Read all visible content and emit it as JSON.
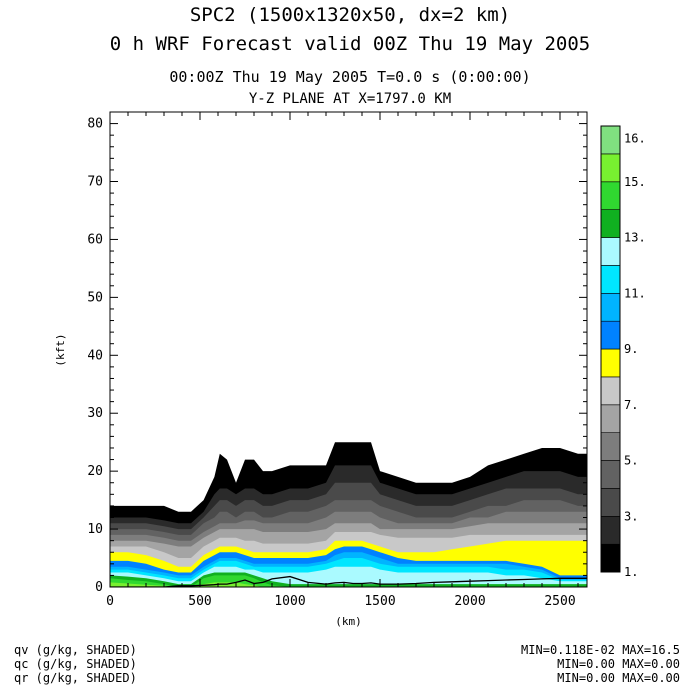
{
  "header": {
    "title_line1": "SPC2 (1500x1320x50, dx=2 km)",
    "title_line2": "0 h WRF Forecast valid 00Z Thu 19 May 2005",
    "time_line": "00:00Z Thu 19 May 2005      T=0.0 s (0:00:00)",
    "plane_line": "Y-Z PLANE AT X=1797.0 KM"
  },
  "footer": {
    "fields": [
      "qv (g/kg, SHADED)",
      "qc (g/kg, SHADED)",
      "qr (g/kg, SHADED)"
    ],
    "stats": [
      "MIN=0.118E-02 MAX=16.5",
      "MIN=0.00 MAX=0.00",
      "MIN=0.00 MAX=0.00"
    ]
  },
  "colors": {
    "levels": [
      "#000000",
      "#2a2a2a",
      "#4a4a4a",
      "#626262",
      "#7d7d7d",
      "#a4a4a4",
      "#c8c8c8",
      "#ffff00",
      "#0082ff",
      "#00b4ff",
      "#00e6ff",
      "#aafaff",
      "#10b020",
      "#30d830",
      "#78f030",
      "#80e080"
    ]
  },
  "chart_data": {
    "type": "heatmap",
    "xlabel": "(km)",
    "ylabel": "(kft)",
    "xlim": [
      0,
      2650
    ],
    "ylim": [
      0,
      82
    ],
    "x_ticks": [
      0,
      500,
      1000,
      1500,
      2000,
      2500
    ],
    "x_tick_labels": [
      "0",
      "500",
      "1000",
      "1500",
      "2000",
      "2500"
    ],
    "y_ticks": [
      0,
      10,
      20,
      30,
      40,
      50,
      60,
      70,
      80
    ],
    "y_tick_labels": [
      "0",
      "10",
      "20",
      "30",
      "40",
      "50",
      "60",
      "70",
      "80"
    ],
    "colorbar": {
      "levels": [
        1,
        2,
        3,
        4,
        5,
        6,
        7,
        8,
        9,
        10,
        11,
        12,
        13,
        14,
        15,
        16
      ],
      "labels": [
        {
          "value": 1,
          "text": "1."
        },
        {
          "value": 3,
          "text": "3."
        },
        {
          "value": 5,
          "text": "5."
        },
        {
          "value": 7,
          "text": "7."
        },
        {
          "value": 9,
          "text": "9."
        },
        {
          "value": 11,
          "text": "11."
        },
        {
          "value": 13,
          "text": "13."
        },
        {
          "value": 15,
          "text": "15."
        },
        {
          "value": 16,
          "text": "16."
        }
      ]
    },
    "x": [
      0,
      100,
      200,
      300,
      380,
      450,
      520,
      580,
      610,
      650,
      700,
      750,
      800,
      850,
      900,
      1000,
      1100,
      1200,
      1250,
      1300,
      1350,
      1400,
      1450,
      1500,
      1600,
      1700,
      1800,
      1900,
      2000,
      2100,
      2200,
      2300,
      2400,
      2500,
      2600,
      2650
    ],
    "qv_tops": [
      [
        14,
        14,
        14,
        14,
        13,
        13,
        15,
        19,
        23,
        22,
        18,
        22,
        22,
        20,
        20,
        21,
        21,
        21,
        25,
        25,
        25,
        25,
        25,
        20,
        19,
        18,
        18,
        18,
        19,
        21,
        22,
        23,
        24,
        24,
        23,
        23
      ],
      [
        12,
        12,
        12,
        11.5,
        11,
        11,
        13,
        16,
        17,
        17,
        16,
        17,
        17,
        16,
        16,
        17,
        17,
        18,
        21,
        21,
        21,
        21,
        21,
        18,
        17,
        16,
        16,
        16,
        17,
        18,
        19,
        20,
        20,
        20,
        19,
        19
      ],
      [
        11,
        11,
        11,
        10.5,
        10,
        10,
        12,
        14,
        15,
        15,
        14,
        15,
        15,
        14,
        14,
        15,
        15,
        16,
        18,
        18,
        18,
        18,
        18,
        16,
        15,
        14,
        14,
        14,
        15,
        16,
        17,
        17,
        17,
        17,
        16,
        16
      ],
      [
        10,
        10,
        10,
        9.5,
        9,
        9,
        11,
        12,
        13,
        13,
        12,
        13,
        13,
        12,
        12,
        13,
        13,
        14,
        15,
        15,
        15,
        15,
        15,
        14,
        13,
        12,
        12,
        12,
        13,
        14,
        14,
        15,
        15,
        15,
        14,
        14
      ],
      [
        9,
        9,
        9,
        8.5,
        8,
        8,
        9.5,
        10.5,
        11,
        11,
        11,
        11.5,
        11.5,
        11,
        11,
        11,
        11,
        12,
        13,
        13,
        13,
        13,
        13,
        12,
        11,
        11,
        11,
        11,
        12,
        12,
        13,
        13,
        13,
        13,
        13,
        13
      ],
      [
        8,
        8,
        8,
        7.5,
        7,
        7,
        8.5,
        9.5,
        10,
        10,
        10,
        10,
        10,
        9.5,
        9.5,
        9.5,
        9.5,
        10,
        11,
        11,
        11,
        11,
        11,
        10,
        10,
        10,
        10,
        10,
        10.5,
        11,
        11,
        11,
        11,
        11,
        11,
        11
      ],
      [
        7,
        7,
        7,
        6,
        5,
        5,
        7,
        8,
        8.5,
        8.5,
        8.5,
        8,
        8,
        7.5,
        7.5,
        7.5,
        7.5,
        8,
        9.5,
        9.5,
        9.5,
        9.5,
        9.5,
        9,
        8.5,
        8.5,
        8.5,
        8.5,
        9,
        9,
        9,
        9,
        9,
        9,
        9,
        9
      ],
      [
        6,
        6,
        5.5,
        4.5,
        3.5,
        3.5,
        5.5,
        6.5,
        7,
        7,
        7,
        6.5,
        6,
        6,
        6,
        6,
        6,
        6.5,
        8,
        8,
        8,
        8,
        7.5,
        7,
        6,
        6,
        6,
        6.5,
        7,
        7.5,
        8,
        8,
        8,
        8,
        8,
        8
      ],
      [
        4.5,
        4.5,
        4,
        3,
        2.5,
        2.5,
        4.5,
        5.5,
        6,
        6,
        6,
        5.5,
        5,
        5,
        5,
        5,
        5,
        5.5,
        6.5,
        7,
        7,
        7,
        6.5,
        6,
        5,
        4.5,
        4.5,
        4.5,
        4.5,
        4.5,
        4.5,
        4,
        3.5,
        2,
        2,
        2
      ],
      [
        3.5,
        3.5,
        3,
        2.5,
        2,
        2,
        3.5,
        4.5,
        5,
        5,
        5,
        4.5,
        4,
        4,
        4,
        4,
        4,
        4.5,
        5.5,
        6,
        6,
        6,
        5.5,
        5,
        4,
        4,
        4,
        4,
        4,
        4,
        4,
        3.5,
        3,
        1.5,
        1.5,
        1.5
      ],
      [
        3,
        3,
        2.5,
        2,
        1.5,
        1.5,
        3,
        4,
        4.5,
        4.5,
        4.5,
        4,
        3.5,
        3.5,
        3.5,
        3.5,
        3.5,
        4,
        4.5,
        5,
        5,
        5,
        4.5,
        4,
        3.5,
        3.5,
        3.5,
        3.5,
        3.5,
        3.5,
        3,
        3,
        2.5,
        1.2,
        1.2,
        1.2
      ],
      [
        2.5,
        2.5,
        2,
        1.5,
        1,
        1,
        2.5,
        3.5,
        3.5,
        3.5,
        3.5,
        3,
        3,
        2.5,
        2.5,
        2.5,
        2.5,
        3,
        3.5,
        3.5,
        3.5,
        3.5,
        3.5,
        3,
        2.5,
        2.5,
        2.5,
        2.5,
        2.5,
        2.5,
        2,
        2,
        1.5,
        1,
        1,
        1
      ],
      [
        2,
        1.8,
        1.5,
        1,
        0.5,
        0.5,
        2,
        2.5,
        2.5,
        2.5,
        2.5,
        2.5,
        2,
        1.5,
        1,
        0.5,
        0.5,
        0.5,
        0.5,
        0.5,
        0.5,
        0.5,
        0.5,
        0.5,
        0.5,
        0.5,
        0.5,
        0.5,
        0.5,
        0.5,
        0.5,
        0.5,
        0.5,
        0.5,
        0.5,
        0.5
      ],
      [
        1.5,
        1.2,
        1,
        0.5,
        0,
        0,
        1.5,
        2,
        2,
        2,
        2,
        2,
        1.5,
        0.8,
        0.3,
        0,
        0,
        0,
        0,
        0,
        0,
        0,
        0,
        0,
        0,
        0,
        0,
        0,
        0,
        0,
        0,
        0,
        0,
        0,
        0,
        0
      ],
      [
        0.8,
        0.6,
        0.4,
        0.2,
        0,
        0,
        0.5,
        0.8,
        0.8,
        0.8,
        0.8,
        0.5,
        0.3,
        0,
        0,
        0,
        0,
        0,
        0,
        0,
        0,
        0,
        0,
        0,
        0,
        0,
        0,
        0,
        0,
        0,
        0,
        0,
        0,
        0,
        0,
        0
      ]
    ],
    "terrain": [
      0,
      0,
      0,
      0,
      0.2,
      0.2,
      0.3,
      0.4,
      0.5,
      0.5,
      0.8,
      1.2,
      0.6,
      0.8,
      1.4,
      1.8,
      0.8,
      0.5,
      0.7,
      0.8,
      0.6,
      0.6,
      0.7,
      0.5,
      0.5,
      0.6,
      0.8,
      0.9,
      1.0,
      1.1,
      1.2,
      1.3,
      1.4,
      1.5,
      1.5,
      1.5
    ]
  }
}
